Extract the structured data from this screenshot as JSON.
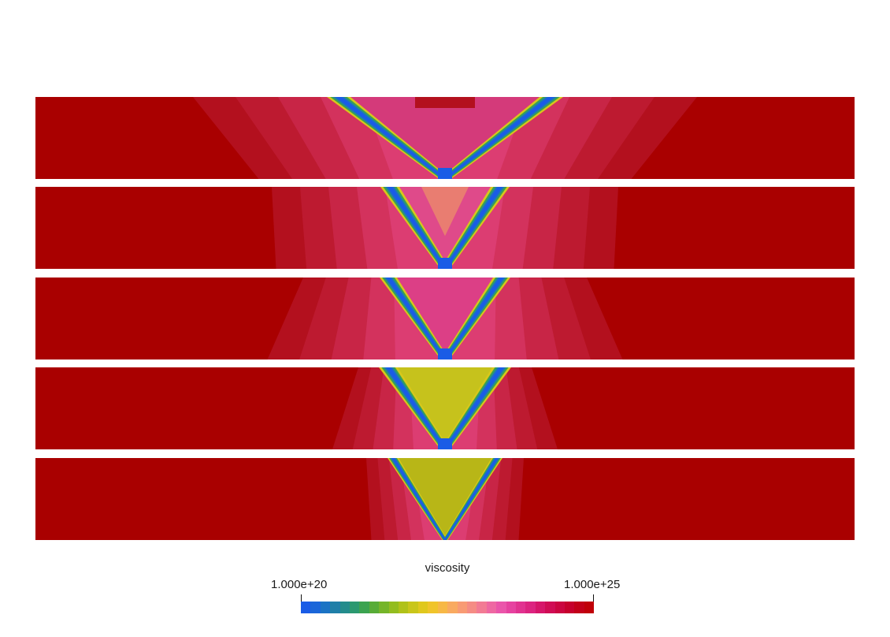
{
  "figure": {
    "panels": [
      {
        "id": "panel-1"
      },
      {
        "id": "panel-2"
      },
      {
        "id": "panel-3"
      },
      {
        "id": "panel-4"
      },
      {
        "id": "panel-5"
      }
    ]
  },
  "legend": {
    "title": "viscosity",
    "min_label": "1.000e+20",
    "max_label": "1.000e+25",
    "colormap": [
      "#1a5ce6",
      "#1a66d9",
      "#1a73c4",
      "#1f7fa8",
      "#238c8c",
      "#2b9970",
      "#3ba350",
      "#58ac37",
      "#75b529",
      "#93bd1f",
      "#b0c219",
      "#c9c61a",
      "#e0c81d",
      "#f0c42a",
      "#f7b846",
      "#f9aa60",
      "#f89b74",
      "#f58c84",
      "#f27b94",
      "#ee68a2",
      "#ea55aa",
      "#e642a0",
      "#e13290",
      "#dc2480",
      "#d6166a",
      "#d00c54",
      "#cb0540",
      "#c6002c",
      "#c20018",
      "#c00008"
    ],
    "domain_color": "#a90000"
  }
}
